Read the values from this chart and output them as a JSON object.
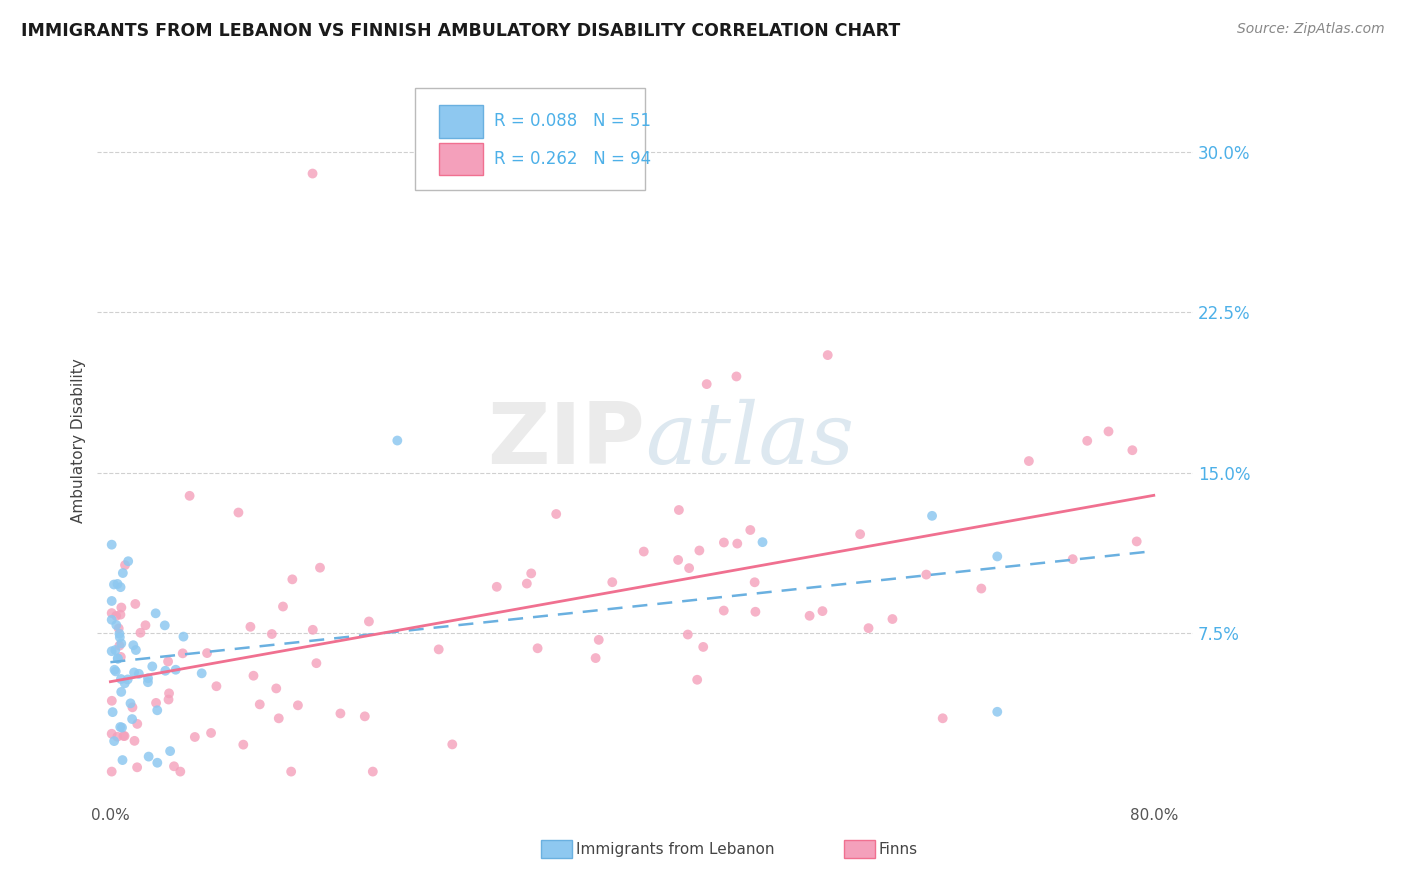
{
  "title": "IMMIGRANTS FROM LEBANON VS FINNISH AMBULATORY DISABILITY CORRELATION CHART",
  "source": "Source: ZipAtlas.com",
  "ylabel": "Ambulatory Disability",
  "y_ticks": [
    0.075,
    0.15,
    0.225,
    0.3
  ],
  "y_tick_labels": [
    "7.5%",
    "15.0%",
    "22.5%",
    "30.0%"
  ],
  "xlim": [
    0.0,
    0.8
  ],
  "ylim": [
    0.0,
    0.32
  ],
  "legend_r1": "R = 0.088   N = 51",
  "legend_r2": "R = 0.262   N = 94",
  "color_blue": "#8ec8f0",
  "color_pink": "#f4a0bb",
  "color_blue_line": "#6ab0e0",
  "color_pink_line": "#f07090",
  "color_ytick": "#4db0e8",
  "watermark_color": "#e8e8e8",
  "grid_color": "#d0d0d0",
  "title_color": "#1a1a1a",
  "source_color": "#888888",
  "legend_text_color": "#4db0e8",
  "bottom_legend_color": "#444444"
}
